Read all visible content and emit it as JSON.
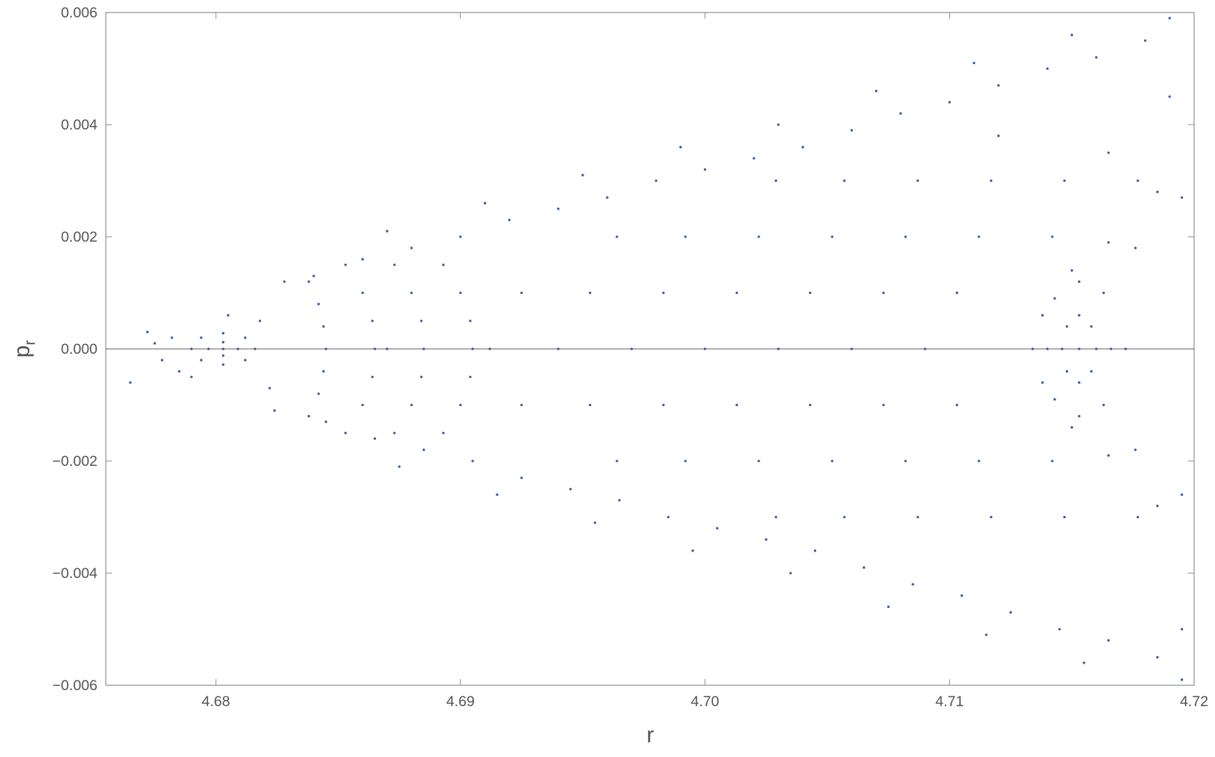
{
  "chart_data": {
    "type": "scatter",
    "xlabel": "r",
    "ylabel": "p",
    "ylabel_subscript": "r",
    "color": "#3a5fa8",
    "xlim": [
      4.6755,
      4.72
    ],
    "ylim": [
      -0.006,
      0.006
    ],
    "xticks": [
      4.68,
      4.69,
      {
        "value": 4.7,
        "label": "4.70"
      },
      4.71,
      4.72
    ],
    "yticks": [
      {
        "value": -0.006,
        "label": "−0.006"
      },
      {
        "value": -0.004,
        "label": "−0.004"
      },
      {
        "value": -0.002,
        "label": "−0.002"
      },
      {
        "value": 0,
        "label": "0.000"
      },
      0.002,
      0.004,
      0.006
    ],
    "x": [
      4.6816,
      4.6812,
      4.6803,
      4.6794,
      4.679,
      4.6794,
      4.6803,
      4.6812,
      4.6809,
      4.6803,
      4.6797,
      4.6803,
      4.6803,
      4.6775,
      4.6778,
      4.6765,
      4.6782,
      4.6785,
      4.6805,
      4.6818,
      4.6822,
      4.6828,
      4.6824,
      4.6772,
      4.679,
      4.6893,
      4.69,
      4.6904,
      4.6905,
      4.6904,
      4.69,
      4.6893,
      4.6873,
      4.688,
      4.6884,
      4.6885,
      4.6884,
      4.688,
      4.6873,
      4.6853,
      4.686,
      4.6864,
      4.6865,
      4.6864,
      4.686,
      4.6853,
      4.6838,
      4.6842,
      4.6844,
      4.6845,
      4.6844,
      4.6842,
      4.6838,
      4.687,
      4.7029,
      4.6964,
      4.6925,
      4.6912,
      4.6925,
      4.6964,
      4.7029,
      4.7057,
      4.6992,
      4.6953,
      4.694,
      4.6953,
      4.6992,
      4.7057,
      4.7087,
      4.7022,
      4.6983,
      4.697,
      4.6983,
      4.7022,
      4.7087,
      4.7117,
      4.7052,
      4.7013,
      4.7,
      4.7013,
      4.7052,
      4.7117,
      4.7147,
      4.7082,
      4.7043,
      4.703,
      4.7043,
      4.7082,
      4.7147,
      4.7177,
      4.7112,
      4.7073,
      4.706,
      4.7073,
      4.7112,
      4.7177,
      4.7142,
      4.7103,
      4.709,
      4.7103,
      4.7142,
      4.684,
      4.686,
      4.688,
      4.69,
      4.692,
      4.694,
      4.696,
      4.698,
      4.7,
      4.702,
      4.704,
      4.706,
      4.708,
      4.71,
      4.712,
      4.714,
      4.716,
      4.718,
      4.687,
      4.691,
      4.695,
      4.699,
      4.703,
      4.707,
      4.711,
      4.715,
      4.719,
      4.6845,
      4.6865,
      4.6885,
      4.6905,
      4.6925,
      4.6945,
      4.6965,
      4.6985,
      4.7005,
      4.7025,
      4.7045,
      4.7065,
      4.7085,
      4.7105,
      4.7125,
      4.7145,
      4.7165,
      4.7185,
      4.6875,
      4.6915,
      4.6955,
      4.6995,
      4.7035,
      4.7075,
      4.7115,
      4.7155,
      4.7195,
      4.716,
      4.7158,
      4.7153,
      4.7148,
      4.7146,
      4.7148,
      4.7153,
      4.7158,
      4.7166,
      4.7163,
      4.7153,
      4.7143,
      4.714,
      4.7143,
      4.7153,
      4.7163,
      4.7176,
      4.7165,
      4.715,
      4.7138,
      4.7134,
      4.7138,
      4.715,
      4.7165,
      4.7176,
      4.7172,
      4.7153,
      4.7185,
      4.7195,
      4.7165,
      4.712,
      4.7185,
      4.7195,
      4.719,
      4.7195
    ],
    "values": [
      0,
      0.0002,
      0.00028,
      0.0002,
      0,
      -0.0002,
      -0.00028,
      -0.0002,
      0,
      0.00012,
      0,
      -0.00012,
      0,
      0.0001,
      -0.0002,
      -0.0006,
      0.0002,
      -0.0004,
      0.0006,
      0.0005,
      -0.0007,
      0.0012,
      -0.0011,
      0.0003,
      -0.0005,
      0.0015,
      0.001,
      0.0005,
      0,
      -0.0005,
      -0.001,
      -0.0015,
      0.0015,
      0.001,
      0.0005,
      0,
      -0.0005,
      -0.001,
      -0.0015,
      0.0015,
      0.001,
      0.0005,
      0,
      -0.0005,
      -0.001,
      -0.0015,
      0.0012,
      0.0008,
      0.0004,
      0,
      -0.0004,
      -0.0008,
      -0.0012,
      0,
      0.003,
      0.002,
      0.001,
      0,
      -0.001,
      -0.002,
      -0.003,
      0.003,
      0.002,
      0.001,
      0,
      -0.001,
      -0.002,
      -0.003,
      0.003,
      0.002,
      0.001,
      0,
      -0.001,
      -0.002,
      -0.003,
      0.003,
      0.002,
      0.001,
      0,
      -0.001,
      -0.002,
      -0.003,
      0.003,
      0.002,
      0.001,
      0,
      -0.001,
      -0.002,
      -0.003,
      0.003,
      0.002,
      0.001,
      0,
      -0.001,
      -0.002,
      -0.003,
      0.002,
      0.001,
      0,
      -0.001,
      -0.002,
      0.0013,
      0.0016,
      0.0018,
      0.002,
      0.0023,
      0.0025,
      0.0027,
      0.003,
      0.0032,
      0.0034,
      0.0036,
      0.0039,
      0.0042,
      0.0044,
      0.0047,
      0.005,
      0.0052,
      0.0055,
      0.0021,
      0.0026,
      0.0031,
      0.0036,
      0.004,
      0.0046,
      0.0051,
      0.0056,
      0.0059,
      -0.0013,
      -0.0016,
      -0.0018,
      -0.002,
      -0.0023,
      -0.0025,
      -0.0027,
      -0.003,
      -0.0032,
      -0.0034,
      -0.0036,
      -0.0039,
      -0.0042,
      -0.0044,
      -0.0047,
      -0.005,
      -0.0052,
      -0.0055,
      -0.0021,
      -0.0026,
      -0.0031,
      -0.0036,
      -0.004,
      -0.0046,
      -0.0051,
      -0.0056,
      -0.0059,
      0,
      0.0004,
      0.0006,
      0.0004,
      0,
      -0.0004,
      -0.0006,
      -0.0004,
      0,
      0.001,
      0.0012,
      0.0009,
      0,
      -0.0009,
      -0.0012,
      -0.001,
      0.0018,
      0.0019,
      0.0014,
      0.0006,
      0,
      -0.0006,
      -0.0014,
      -0.0019,
      -0.0018,
      0,
      0,
      0.0028,
      0.0027,
      0.0035,
      0.0038,
      -0.0028,
      -0.0026,
      0.0045,
      -0.005
    ]
  }
}
